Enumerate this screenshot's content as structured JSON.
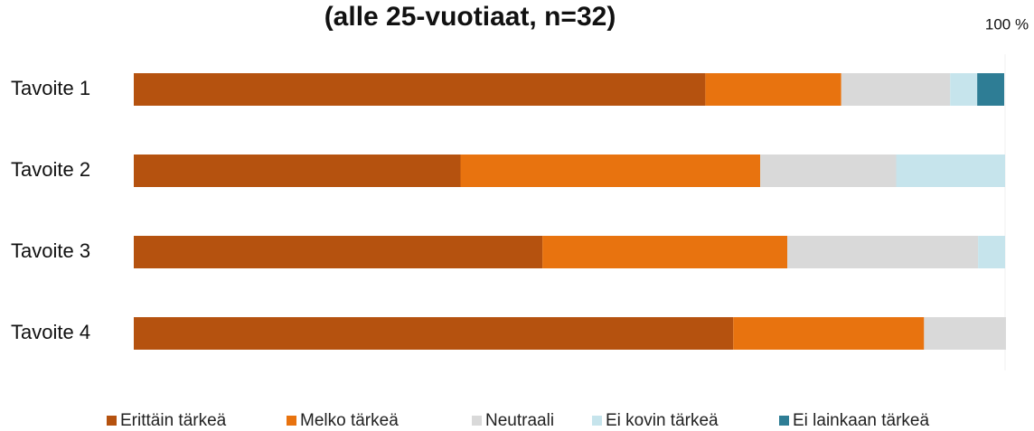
{
  "chart_data": {
    "type": "stacked_barh",
    "title": "(alle 25-vuotiaat, n=32)",
    "categories": [
      "Tavoite 1",
      "Tavoite 2",
      "Tavoite 3",
      "Tavoite 4"
    ],
    "series": [
      {
        "name": "Erittäin tärkeä",
        "color": "#b5520f",
        "values": [
          65.6,
          37.5,
          46.9,
          68.8
        ]
      },
      {
        "name": "Melko tärkeä",
        "color": "#e8730f",
        "values": [
          15.6,
          34.4,
          28.1,
          21.9
        ]
      },
      {
        "name": "Neutraali",
        "color": "#d9d9d9",
        "values": [
          12.5,
          15.6,
          21.9,
          9.4
        ]
      },
      {
        "name": "Ei kovin tärkeä",
        "color": "#c6e4ec",
        "values": [
          3.1,
          12.5,
          3.1,
          0
        ]
      },
      {
        "name": "Ei lainkaan tärkeä",
        "color": "#2e7d95",
        "values": [
          3.1,
          0,
          0,
          0
        ]
      }
    ],
    "xlim": [
      0,
      100
    ],
    "xticks": [
      {
        "value": 100,
        "label": "100 %"
      }
    ],
    "legend": "bottom"
  }
}
